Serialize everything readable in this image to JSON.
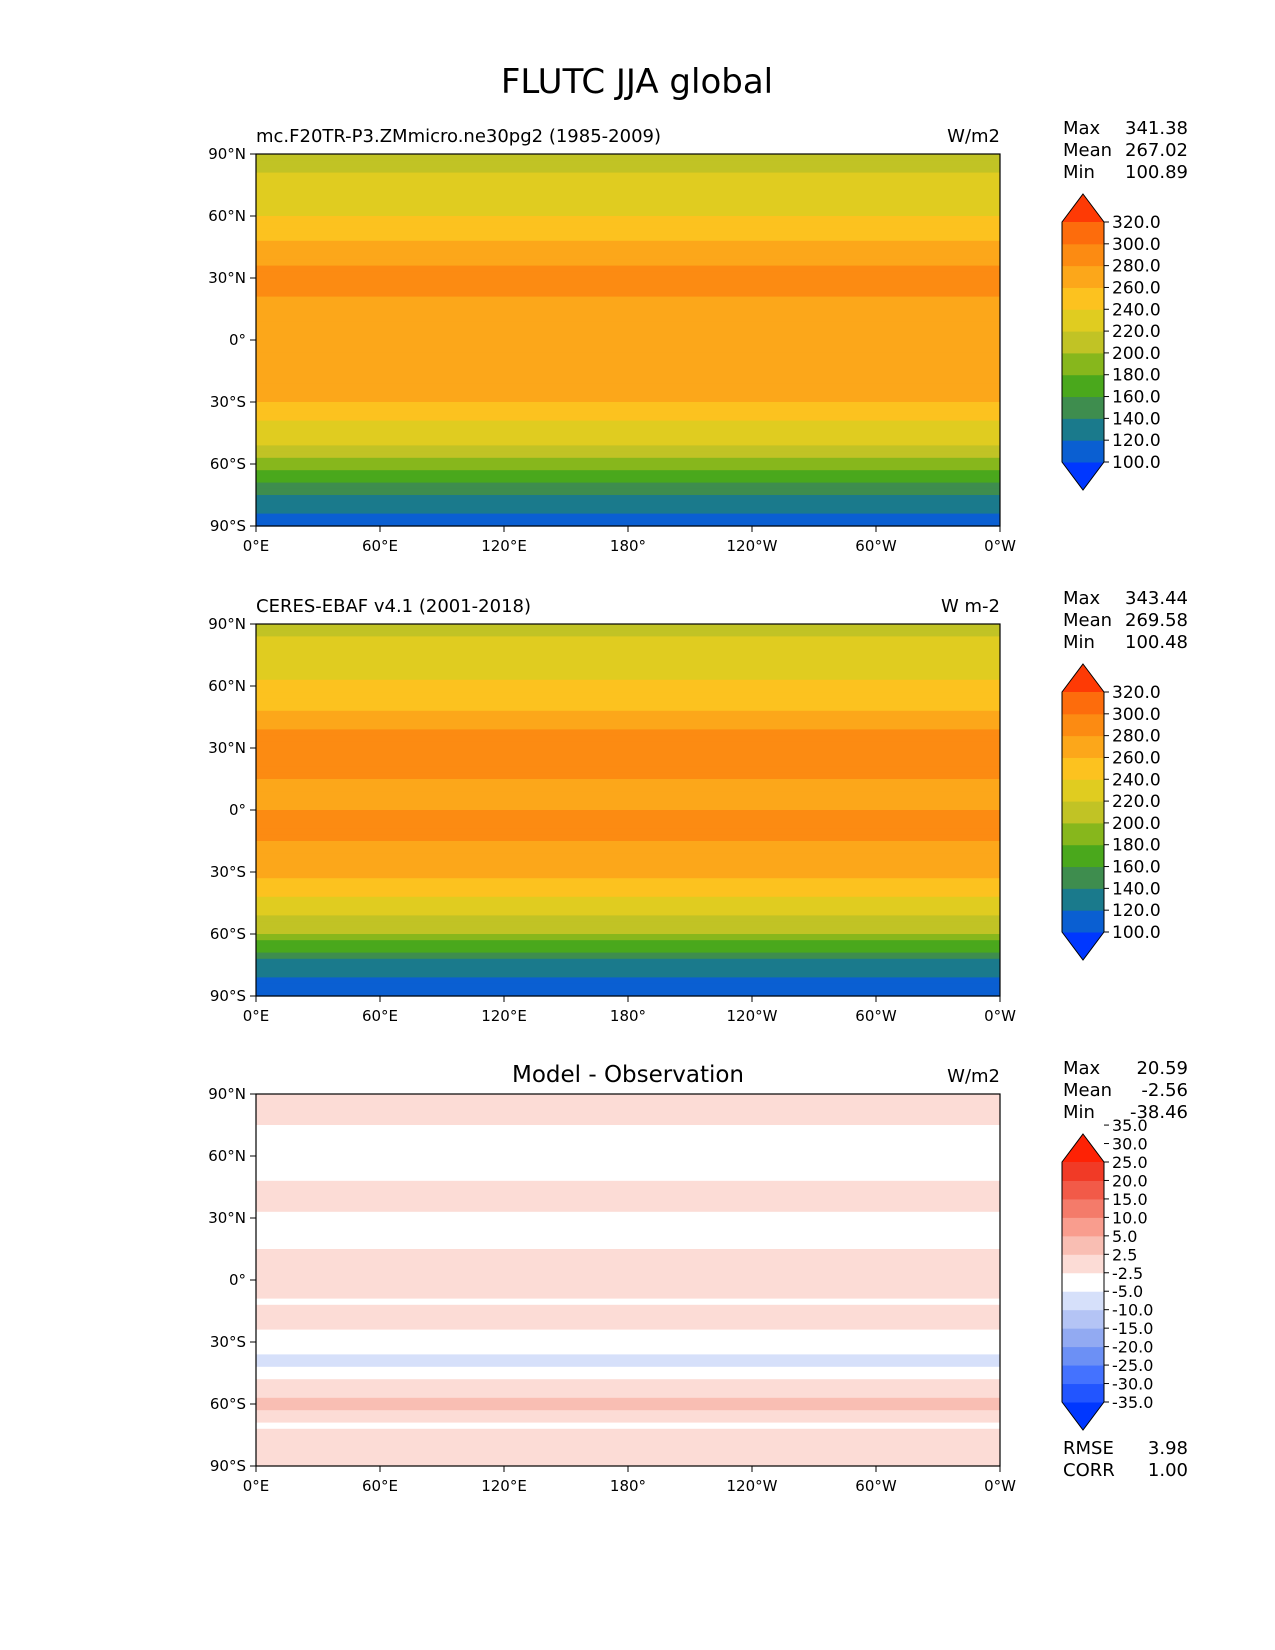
{
  "figure": {
    "title": "FLUTC JJA global"
  },
  "palettes": {
    "abs": [
      "#0037ff",
      "#0a5fd2",
      "#1a7a8c",
      "#3e8d4e",
      "#4aa81c",
      "#87b71c",
      "#c1c325",
      "#e0cc20",
      "#fcc21f",
      "#fca71a",
      "#fc8b12",
      "#fd6c0c",
      "#fe3a05"
    ],
    "diff": [
      "#0037ff",
      "#2255ff",
      "#4472ff",
      "#6c90f5",
      "#92aaf2",
      "#b4c4f5",
      "#d6e0fa",
      "#ffffff",
      "#fcdcd6",
      "#f9beb3",
      "#f99d8e",
      "#f47b6a",
      "#f25a48",
      "#f13a26",
      "#fe2205"
    ]
  },
  "chart_data": [
    {
      "type": "heatmap",
      "title": "mc.F20TR-P3.ZMmicro.ne30pg2 (1985-2009)",
      "units": "W/m2",
      "xlim": [
        0,
        360
      ],
      "ylim": [
        -90,
        90
      ],
      "xticks": [
        "0°E",
        "60°E",
        "120°E",
        "180°",
        "120°W",
        "60°W",
        "0°W"
      ],
      "yticks": [
        "90°N",
        "60°N",
        "30°N",
        "0°",
        "30°S",
        "60°S",
        "90°S"
      ],
      "stats": [
        {
          "label": "Max",
          "value": "341.38"
        },
        {
          "label": "Mean",
          "value": "267.02"
        },
        {
          "label": "Min",
          "value": "100.89"
        }
      ],
      "colorbar": {
        "levels": [
          100,
          120,
          140,
          160,
          180,
          200,
          220,
          240,
          260,
          280,
          300,
          320
        ],
        "tick_labels": [
          "100.0",
          "120.0",
          "140.0",
          "160.0",
          "180.0",
          "200.0",
          "220.0",
          "240.0",
          "260.0",
          "280.0",
          "300.0",
          "320.0"
        ],
        "extend": "both"
      },
      "zonal_profile": {
        "lat": [
          -90,
          -80,
          -70,
          -60,
          -50,
          -40,
          -30,
          -20,
          -10,
          0,
          10,
          20,
          30,
          40,
          50,
          60,
          70,
          80,
          90
        ],
        "value": [
          115,
          125,
          150,
          195,
          220,
          240,
          262,
          275,
          280,
          278,
          275,
          280,
          285,
          275,
          255,
          240,
          230,
          220,
          215
        ]
      },
      "bottom_stats": []
    },
    {
      "type": "heatmap",
      "title": "CERES-EBAF v4.1 (2001-2018)",
      "units": "W m-2",
      "xlim": [
        0,
        360
      ],
      "ylim": [
        -90,
        90
      ],
      "xticks": [
        "0°E",
        "60°E",
        "120°E",
        "180°",
        "120°W",
        "60°W",
        "0°W"
      ],
      "yticks": [
        "90°N",
        "60°N",
        "30°N",
        "0°",
        "30°S",
        "60°S",
        "90°S"
      ],
      "stats": [
        {
          "label": "Max",
          "value": "343.44"
        },
        {
          "label": "Mean",
          "value": "269.58"
        },
        {
          "label": "Min",
          "value": "100.48"
        }
      ],
      "colorbar": {
        "levels": [
          100,
          120,
          140,
          160,
          180,
          200,
          220,
          240,
          260,
          280,
          300,
          320
        ],
        "tick_labels": [
          "100.0",
          "120.0",
          "140.0",
          "160.0",
          "180.0",
          "200.0",
          "220.0",
          "240.0",
          "260.0",
          "280.0",
          "300.0",
          "320.0"
        ],
        "extend": "both"
      },
      "zonal_profile": {
        "lat": [
          -90,
          -80,
          -70,
          -60,
          -50,
          -40,
          -30,
          -20,
          -10,
          0,
          10,
          20,
          30,
          40,
          50,
          60,
          70,
          80,
          90
        ],
        "value": [
          112,
          122,
          148,
          198,
          222,
          242,
          265,
          278,
          283,
          280,
          278,
          283,
          288,
          278,
          258,
          242,
          232,
          222,
          216
        ]
      },
      "bottom_stats": []
    },
    {
      "type": "heatmap",
      "title": "Model - Observation",
      "units": "W/m2",
      "xlim": [
        0,
        360
      ],
      "ylim": [
        -90,
        90
      ],
      "xticks": [
        "0°E",
        "60°E",
        "120°E",
        "180°",
        "120°W",
        "60°W",
        "0°W"
      ],
      "yticks": [
        "90°N",
        "60°N",
        "30°N",
        "0°",
        "30°S",
        "60°S",
        "90°S"
      ],
      "stats": [
        {
          "label": "Max",
          "value": "20.59"
        },
        {
          "label": "Mean",
          "value": "-2.56"
        },
        {
          "label": "Min",
          "value": "-38.46"
        }
      ],
      "colorbar": {
        "levels": [
          -35,
          -30,
          -25,
          -20,
          -15,
          -10,
          -5,
          -2.5,
          2.5,
          5,
          10,
          15,
          20,
          25,
          30,
          35
        ],
        "tick_labels": [
          "-35.0",
          "-30.0",
          "-25.0",
          "-20.0",
          "-15.0",
          "-10.0",
          "-5.0",
          "-2.5",
          "2.5",
          "5.0",
          "10.0",
          "15.0",
          "20.0",
          "25.0",
          "30.0",
          "35.0"
        ],
        "extend": "both"
      },
      "zonal_profile": {
        "lat": [
          -90,
          -80,
          -70,
          -60,
          -50,
          -40,
          -30,
          -20,
          -10,
          0,
          10,
          20,
          30,
          40,
          50,
          60,
          70,
          80,
          90
        ],
        "value": [
          0,
          -1,
          -3,
          4,
          -2,
          -6,
          -4,
          -1,
          -3,
          -1,
          0,
          -5,
          -3,
          -1,
          -3,
          -4,
          -3,
          -2,
          2
        ]
      },
      "bottom_stats": [
        {
          "label": "RMSE",
          "value": "3.98"
        },
        {
          "label": "CORR",
          "value": "1.00"
        }
      ]
    }
  ]
}
